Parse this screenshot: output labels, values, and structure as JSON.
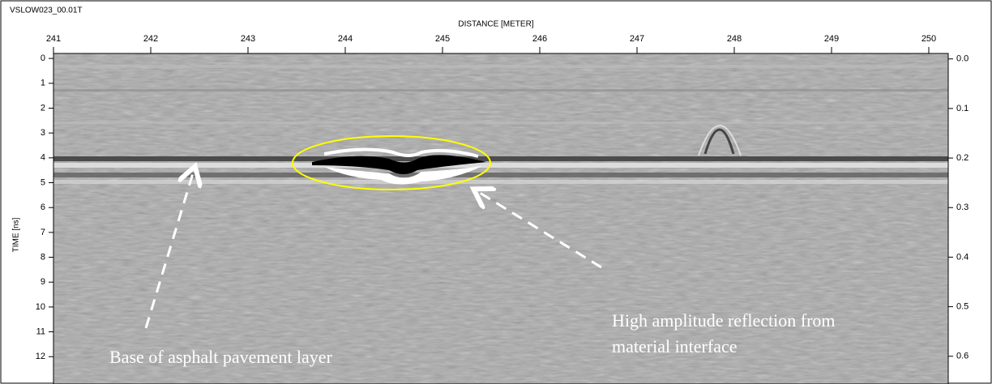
{
  "chart_data": {
    "type": "radargram",
    "title": "VSLOW023_00.01T",
    "x_label": "DISTANCE [METER]",
    "y_label": "TIME [ns]",
    "xlim": [
      241,
      250.2
    ],
    "xticks": [
      241,
      242,
      243,
      244,
      245,
      246,
      247,
      248,
      249,
      250
    ],
    "ylim": [
      -0.2,
      13.1
    ],
    "yticks": [
      0,
      1,
      2,
      3,
      4,
      5,
      6,
      7,
      8,
      9,
      10,
      11,
      12
    ],
    "y2lim": [
      -0.011,
      0.656
    ],
    "y2ticks": [
      {
        "value": 0,
        "label": "0.0"
      },
      0.1,
      0.2,
      0.3,
      0.4,
      0.5,
      0.6
    ],
    "annotations": [
      "Base of asphalt pavement layer",
      "High amplitude reflection from",
      "material interface"
    ]
  }
}
